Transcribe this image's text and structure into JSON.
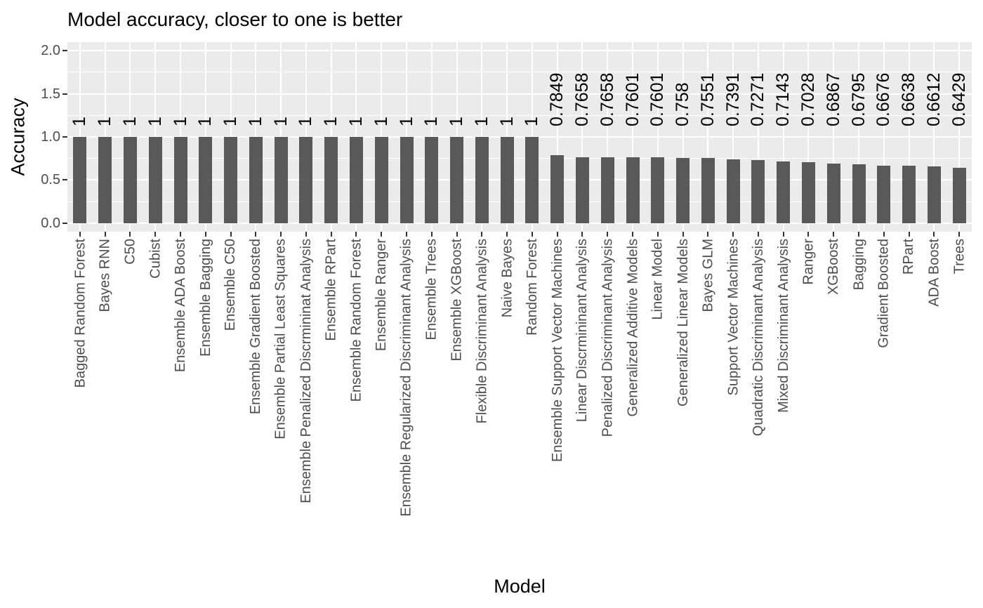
{
  "title": "Model accuracy, closer to one is better",
  "chart_data": {
    "type": "bar",
    "title": "Model accuracy, closer to one is better",
    "xlabel": "Model",
    "ylabel": "Accuracy",
    "categories": [
      "Bagged Random Forest",
      "Bayes RNN",
      "C50",
      "Cubist",
      "Ensemble ADA Boost",
      "Ensemble Bagging",
      "Ensemble C50",
      "Ensemble Gradient Boosted",
      "Ensemble Partial Least Squares",
      "Ensemble Penalized Discrmininat Analysis",
      "Ensemble RPart",
      "Ensemble Random Forest",
      "Ensemble Ranger",
      "Ensemble Regularized Discriminant Analysis",
      "Ensemble Trees",
      "Ensemble XGBoost",
      "Flexible Discriminant Analysis",
      "Naive Bayes",
      "Random Forest",
      "Ensemble Support Vector Machines",
      "Linear Discrmininant Analysis",
      "Penalized Discriminant Analysis",
      "Generalized Additive Models",
      "Linear Model",
      "Generalized Linear Models",
      "Bayes GLM",
      "Support Vector Machines",
      "Quadratic Discriminant Analysis",
      "Mixed Discriminant Analysis",
      "Ranger",
      "XGBoost",
      "Bagging",
      "Gradient Boosted",
      "RPart",
      "ADA Boost",
      "Trees"
    ],
    "values": [
      1,
      1,
      1,
      1,
      1,
      1,
      1,
      1,
      1,
      1,
      1,
      1,
      1,
      1,
      1,
      1,
      1,
      1,
      1,
      0.7849,
      0.7658,
      0.7658,
      0.7601,
      0.7601,
      0.758,
      0.7551,
      0.7391,
      0.7271,
      0.7143,
      0.7028,
      0.6867,
      0.6795,
      0.6676,
      0.6638,
      0.6612,
      0.6429
    ],
    "bar_labels": [
      "1",
      "1",
      "1",
      "1",
      "1",
      "1",
      "1",
      "1",
      "1",
      "1",
      "1",
      "1",
      "1",
      "1",
      "1",
      "1",
      "1",
      "1",
      "1",
      "0.7849",
      "0.7658",
      "0.7658",
      "0.7601",
      "0.7601",
      "0.758",
      "0.7551",
      "0.7391",
      "0.7271",
      "0.7143",
      "0.7028",
      "0.6867",
      "0.6795",
      "0.6676",
      "0.6638",
      "0.6612",
      "0.6429"
    ],
    "yticks": [
      0.0,
      0.5,
      1.0,
      1.5,
      2.0
    ],
    "ytick_labels": [
      "0.0",
      "0.5",
      "1.0",
      "1.5",
      "2.0"
    ],
    "yminor_ticks": [
      0.25,
      0.75,
      1.25,
      1.75
    ],
    "ylim_display": [
      -0.1,
      2.1
    ],
    "grid": true,
    "legend": false,
    "colors": {
      "bar": "#595959",
      "panel_bg": "#EBEBEB",
      "grid": "#FFFFFF",
      "axis_text": "#4D4D4D",
      "tick_mark": "#333333",
      "title_text": "#000000"
    }
  }
}
